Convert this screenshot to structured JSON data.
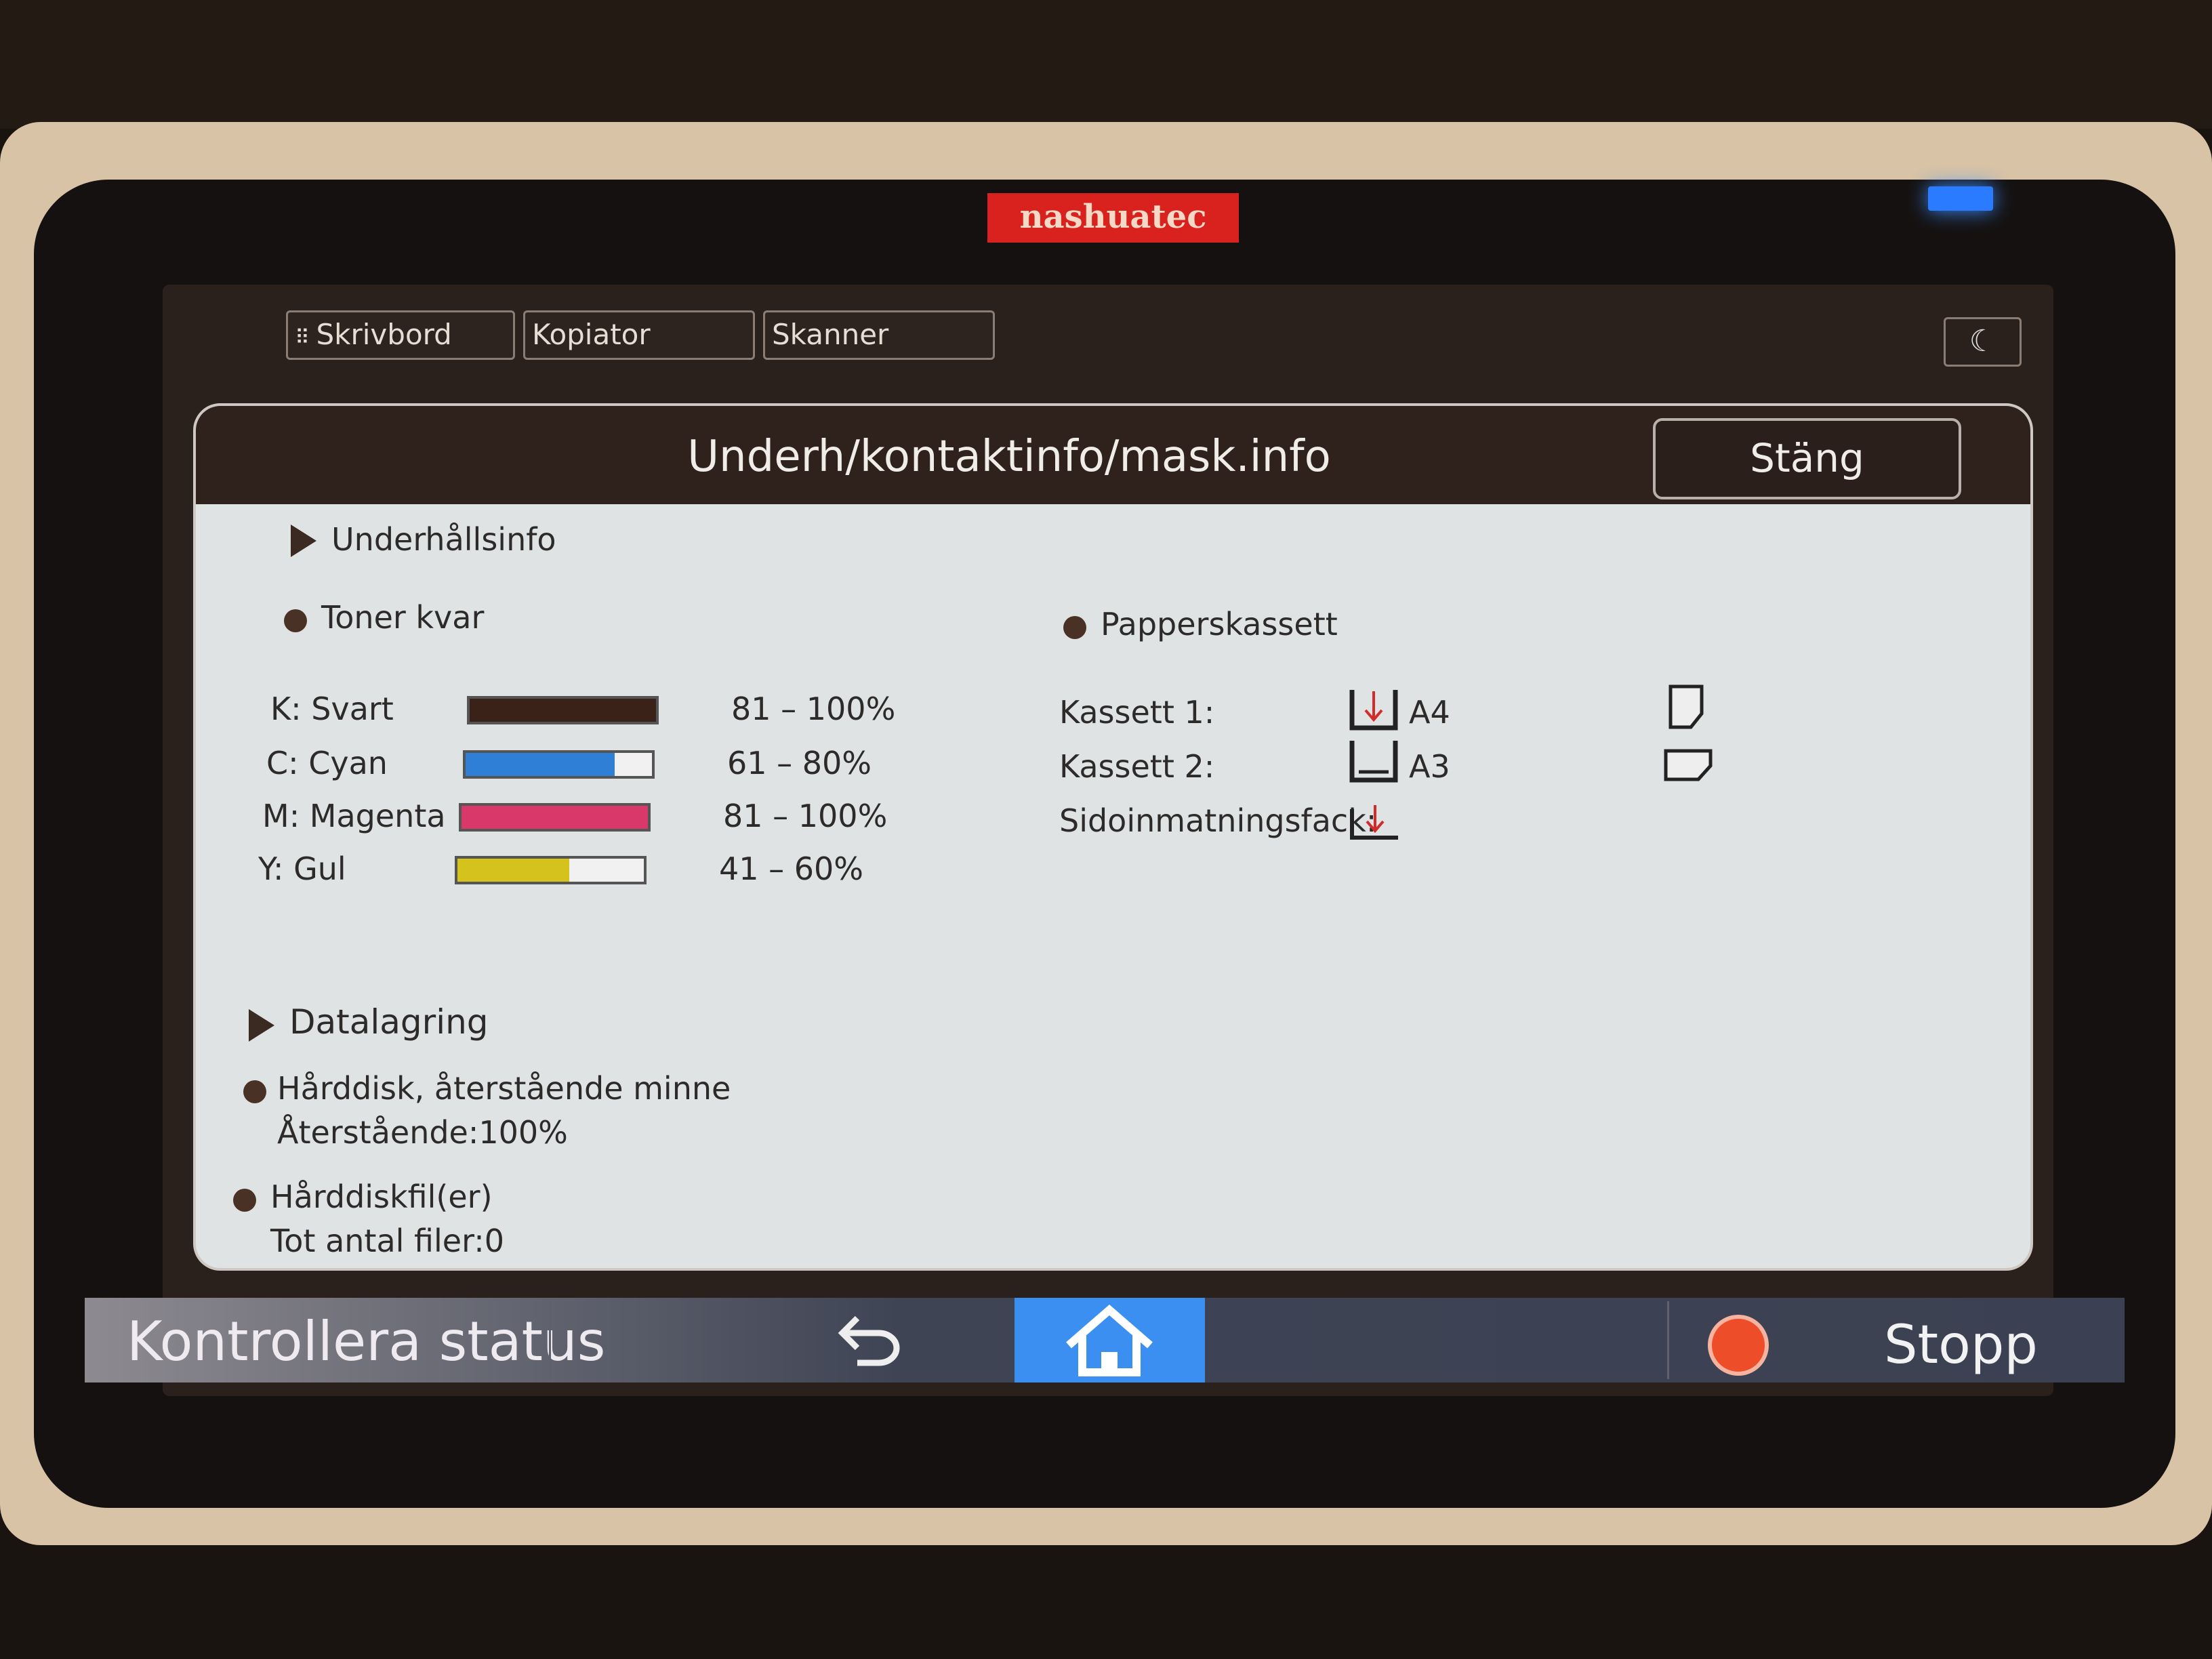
{
  "brand": "nashuatec",
  "tabs": [
    {
      "label": "Skrivbord",
      "icon": "grid-icon"
    },
    {
      "label": "Kopiator"
    },
    {
      "label": "Skanner"
    }
  ],
  "sleep_icon": "moon-icon",
  "dialog": {
    "title": "Underh/kontaktinfo/mask.info",
    "close_label": "Stäng",
    "maintenance": {
      "heading": "Underhållsinfo",
      "toner_heading": "Toner kvar",
      "toner": [
        {
          "label": "K: Svart",
          "value": "81 – 100%",
          "level_percent": 100,
          "color": "#3b2219"
        },
        {
          "label": "C: Cyan",
          "value": "61 – 80%",
          "level_percent": 80,
          "color": "#2f7fd6"
        },
        {
          "label": "M: Magenta",
          "value": "81 – 100%",
          "level_percent": 100,
          "color": "#d8386a"
        },
        {
          "label": "Y: Gul",
          "value": "41 – 60%",
          "level_percent": 60,
          "color": "#d6c21d"
        }
      ],
      "paper_heading": "Papperskassett",
      "trays": [
        {
          "label": "Kassett 1:",
          "size": "A4",
          "icon": "tray-loading-icon",
          "orientation_icon": "paper-portrait-icon"
        },
        {
          "label": "Kassett 2:",
          "size": "A3",
          "icon": "tray-icon",
          "orientation_icon": "paper-landscape-icon"
        },
        {
          "label": "Sidoinmatningsfack:",
          "size": "",
          "icon": "bypass-tray-icon"
        }
      ]
    },
    "storage": {
      "heading": "Datalagring",
      "hdd_heading": "Hårddisk, återstående minne",
      "hdd_value": "Återstående:100%",
      "files_heading": "Hårddiskfil(er)",
      "files_value": "Tot antal filer:0"
    }
  },
  "bottom": {
    "status_label": "Kontrollera status",
    "stop_label": "Stopp",
    "back_icon": "back-icon",
    "home_icon": "home-icon",
    "stop_icon": "stop-icon"
  },
  "colors": {
    "home_button": "#3a8ff0",
    "stop": "#ee4d2a",
    "logo": "#d9221e"
  }
}
